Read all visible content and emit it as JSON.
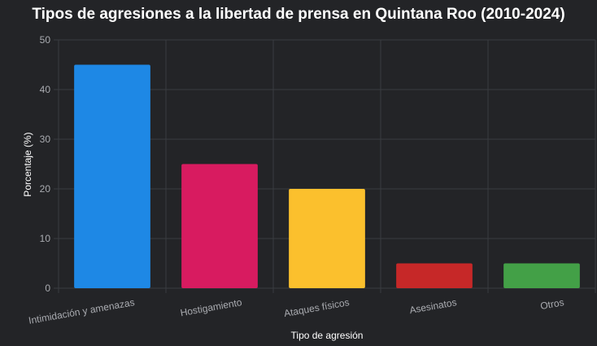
{
  "chart_data": {
    "type": "bar",
    "title": "Tipos de agresiones a la libertad de prensa en Quintana Roo (2010-2024)",
    "xlabel": "Tipo de agresión",
    "ylabel": "Porcentaje (%)",
    "categories": [
      "Intimidación y amenazas",
      "Hostigamiento",
      "Ataques físicos",
      "Asesinatos",
      "Otros"
    ],
    "values": [
      45,
      25,
      20,
      5,
      5
    ],
    "colors": [
      "#1e88e5",
      "#d81b60",
      "#fbc02d",
      "#c62828",
      "#43a047"
    ],
    "ylim": [
      0,
      50
    ],
    "yticks": [
      0,
      10,
      20,
      30,
      40,
      50
    ],
    "grid": true,
    "legend": "none"
  }
}
